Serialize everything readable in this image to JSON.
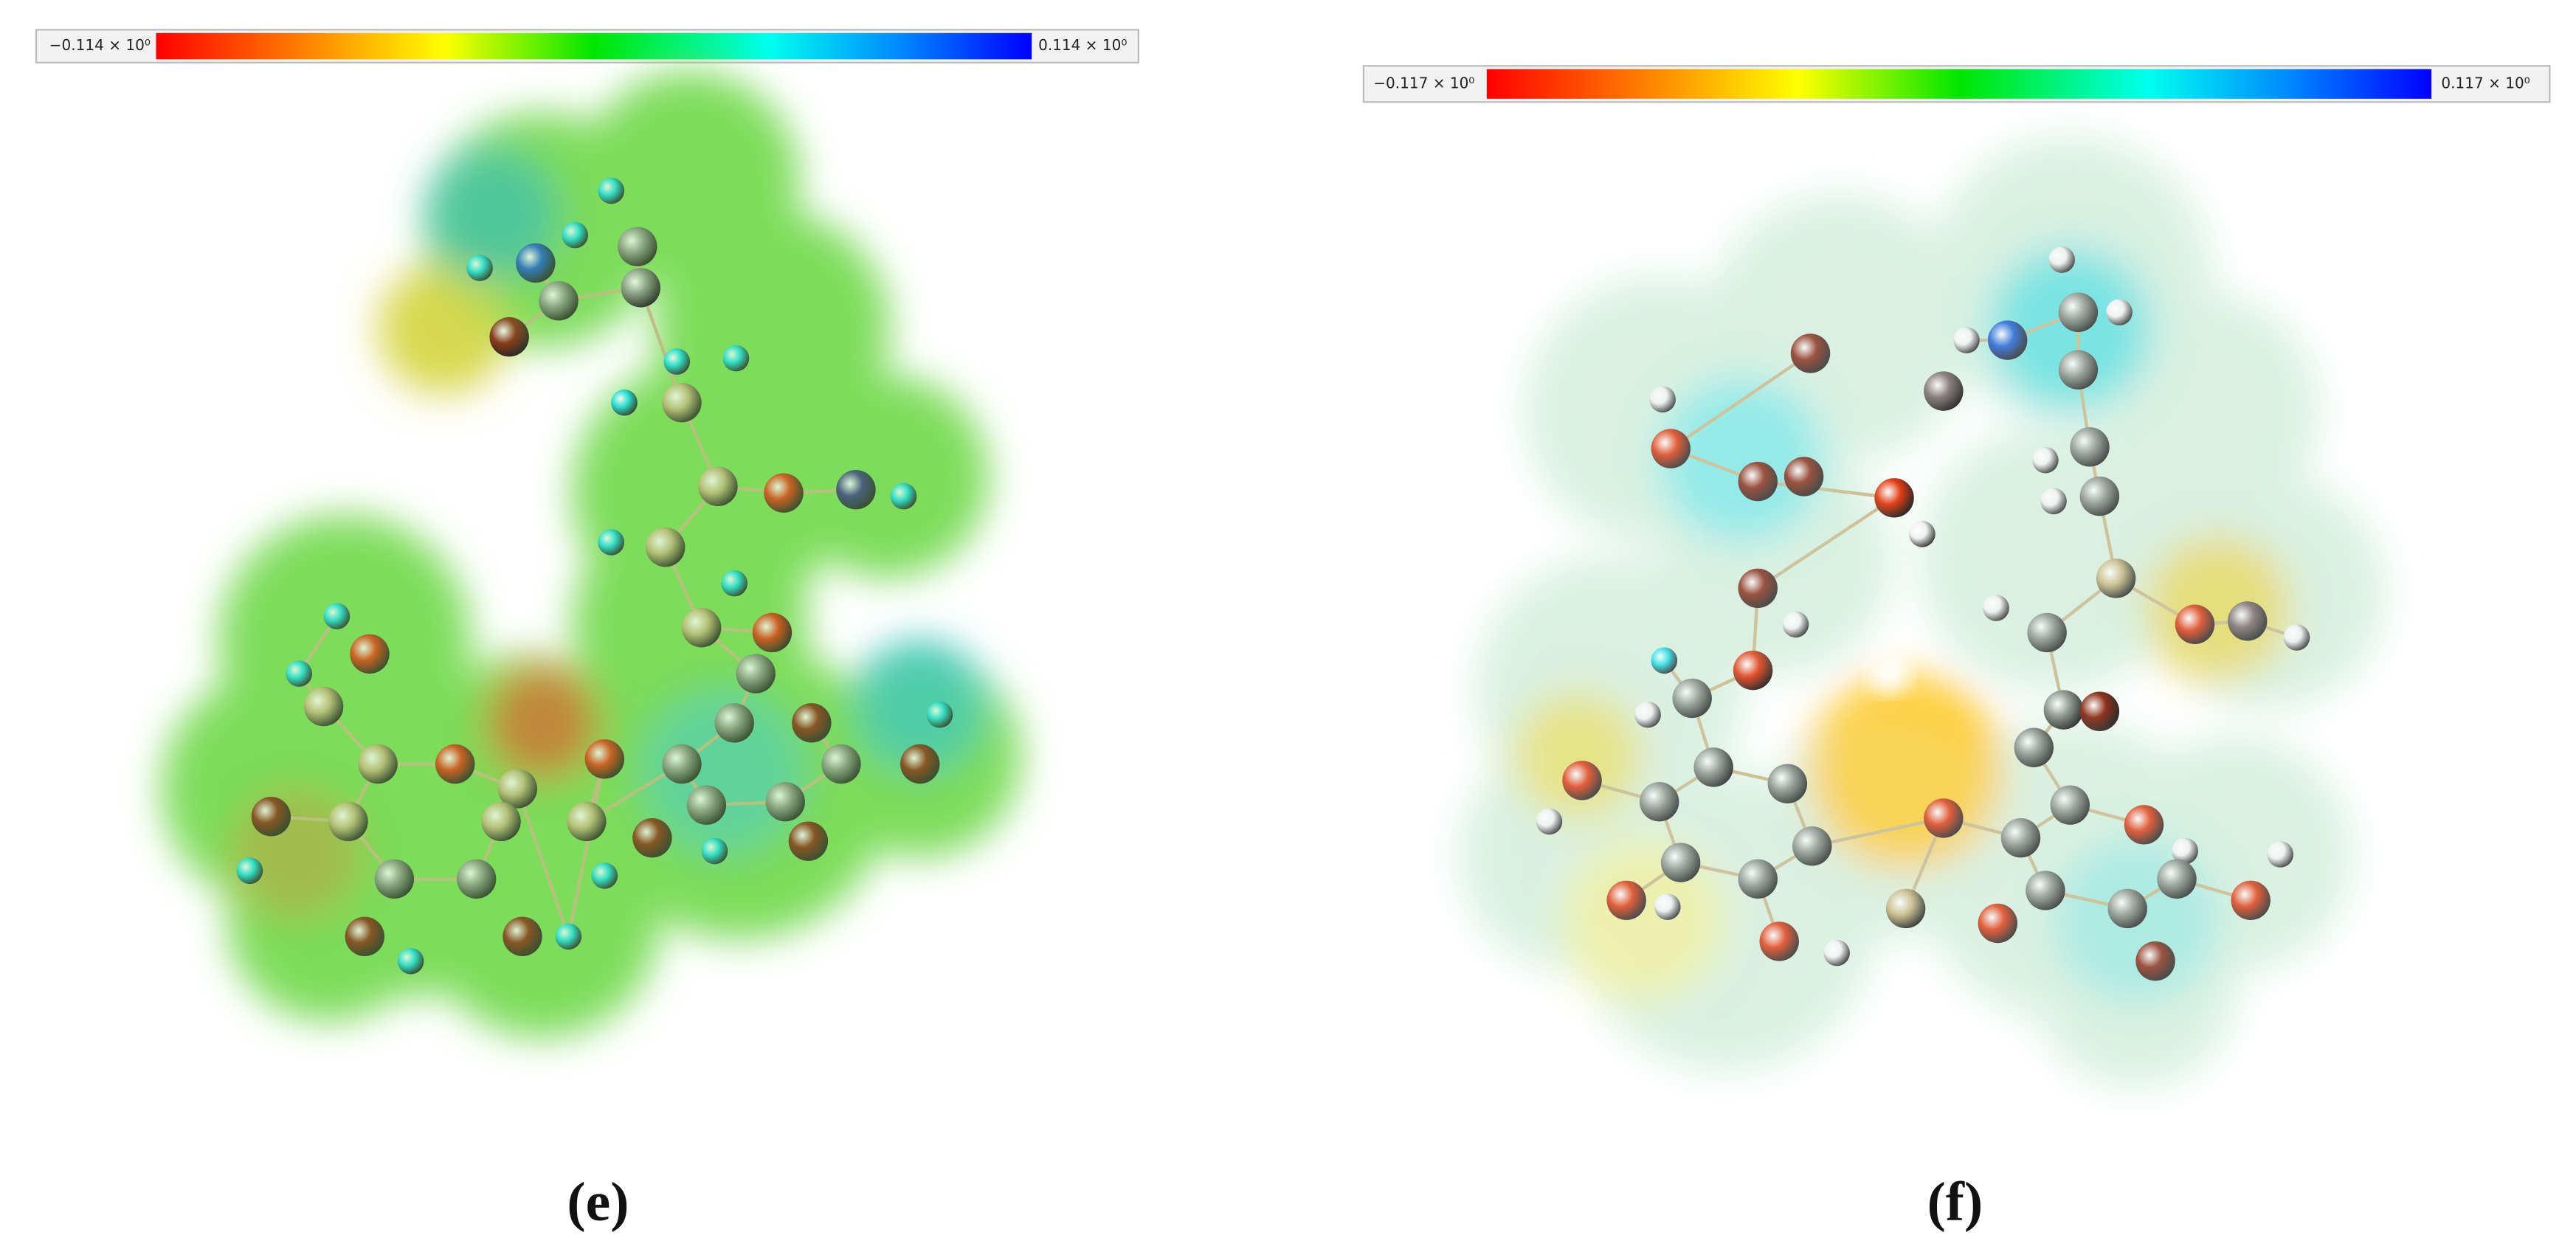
{
  "panels": [
    {
      "label": "(e)",
      "scale": {
        "min": "−0.114 × 10⁰",
        "max": "0.114 × 10⁰"
      }
    },
    {
      "label": "(f)",
      "scale": {
        "min": "−0.117 × 10⁰",
        "max": "0.117 × 10⁰"
      }
    }
  ]
}
